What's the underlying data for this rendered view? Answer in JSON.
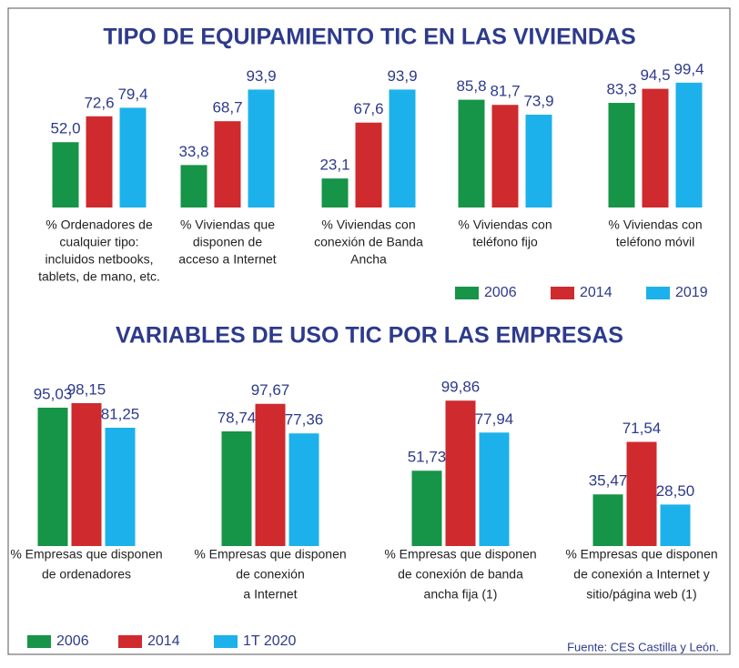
{
  "chart_data": [
    {
      "type": "bar",
      "title": "TIPO DE EQUIPAMIENTO TIC EN LAS VIVIENDAS",
      "categories": [
        [
          "% Ordenadores de",
          "cualquier tipo:",
          "incluidos netbooks,",
          "tablets, de mano, etc."
        ],
        [
          "% Viviendas que",
          "disponen de",
          "acceso a Internet"
        ],
        [
          "% Viviendas con",
          "conexión de Banda",
          "Ancha"
        ],
        [
          "% Viviendas con",
          "teléfono fijo"
        ],
        [
          "% Viviendas con",
          "teléfono móvil"
        ]
      ],
      "series": [
        {
          "name": "2006",
          "color": "#169447",
          "values": [
            52.0,
            33.8,
            23.1,
            85.8,
            83.3
          ],
          "value_labels": [
            "52,0",
            "33,8",
            "23,1",
            "85,8",
            "83,3"
          ]
        },
        {
          "name": "2014",
          "color": "#cf2a2e",
          "values": [
            72.6,
            68.7,
            67.6,
            81.7,
            94.5
          ],
          "value_labels": [
            "72,6",
            "68,7",
            "67,6",
            "81,7",
            "94,5"
          ]
        },
        {
          "name": "2019",
          "color": "#1cb1ea",
          "values": [
            79.4,
            93.9,
            93.9,
            73.9,
            99.4
          ],
          "value_labels": [
            "79,4",
            "93,9",
            "93,9",
            "73,9",
            "99,4"
          ]
        }
      ]
    },
    {
      "type": "bar",
      "title": "VARIABLES DE USO TIC POR LAS EMPRESAS",
      "categories": [
        [
          "% Empresas que disponen",
          "de ordenadores"
        ],
        [
          "% Empresas que disponen",
          "de conexión",
          "a Internet"
        ],
        [
          "% Empresas que disponen",
          "de conexión de banda",
          "ancha fija (1)"
        ],
        [
          "% Empresas que disponen",
          "de conexión a Internet y",
          "sitio/página web (1)"
        ]
      ],
      "series": [
        {
          "name": "2006",
          "color": "#169447",
          "values": [
            95.03,
            78.74,
            51.73,
            35.47
          ],
          "value_labels": [
            "95,03",
            "78,74",
            "51,73",
            "35,47"
          ]
        },
        {
          "name": "2014",
          "color": "#cf2a2e",
          "values": [
            98.15,
            97.67,
            99.86,
            71.54
          ],
          "value_labels": [
            "98,15",
            "97,67",
            "99,86",
            "71,54"
          ]
        },
        {
          "name": "1T 2020",
          "color": "#1cb1ea",
          "values": [
            81.25,
            77.36,
            77.94,
            28.5
          ],
          "value_labels": [
            "81,25",
            "77,36",
            "77,94",
            "28,50"
          ]
        }
      ]
    }
  ],
  "source": "Fuente: CES Castilla y León."
}
